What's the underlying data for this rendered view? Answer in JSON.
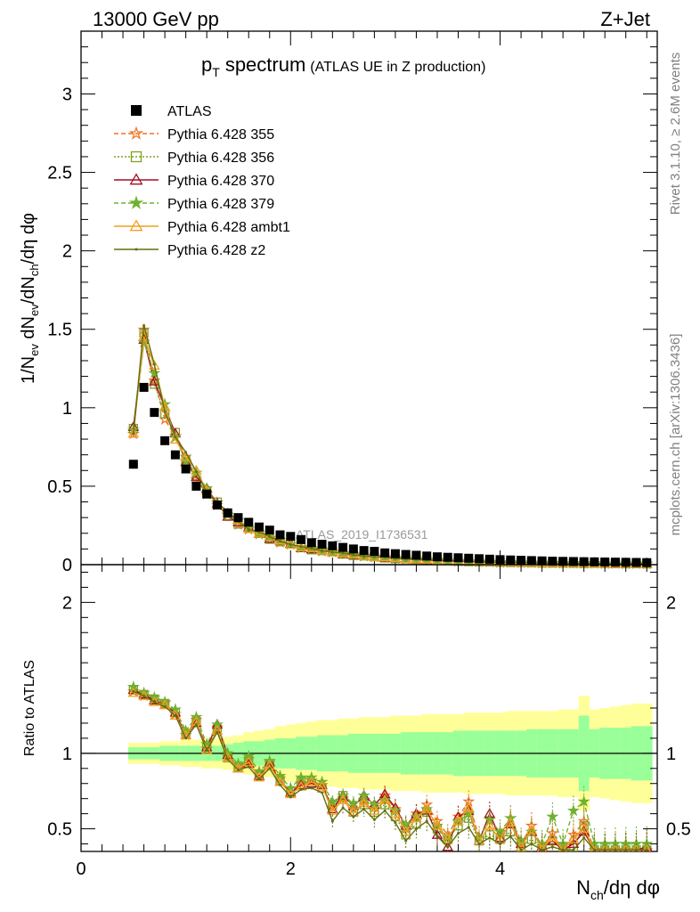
{
  "header": {
    "left": "13000 GeV pp",
    "right": "Z+Jet"
  },
  "side_labels": {
    "rivet": "Rivet 3.1.10, ≥ 2.6M events",
    "mcplots": "mcplots.cern.ch [arXiv:1306.3436]"
  },
  "chart_data": [
    {
      "type": "scatter",
      "title_main": "p",
      "title_sub": "T",
      "title_rest": "spectrum",
      "title_paren": "(ATLAS UE in Z production)",
      "watermark": "ATLAS_2019_I1736531",
      "ylabel": {
        "a": "1/N",
        "a_sub": "ev",
        "b": " dN",
        "b_sub": "ev",
        "c": "/dN",
        "c_sub": "ch",
        "d": "/dη dφ"
      },
      "xlim": [
        0,
        5.5
      ],
      "ylim": [
        0,
        3.4
      ],
      "yticks": [
        0,
        0.5,
        1,
        1.5,
        2,
        2.5,
        3
      ],
      "ytick_labels": [
        "0",
        "0.5",
        "1",
        "1.5",
        "2",
        "2.5",
        "3"
      ],
      "legend": [
        {
          "label": "ATLAS",
          "color": "#000000",
          "marker": "square-filled",
          "line": "none"
        },
        {
          "label": "Pythia 6.428 355",
          "color": "#f07020",
          "marker": "star-open",
          "line": "dashed"
        },
        {
          "label": "Pythia 6.428 356",
          "color": "#80a020",
          "marker": "square-open",
          "line": "dotted"
        },
        {
          "label": "Pythia 6.428 370",
          "color": "#a01020",
          "marker": "triangle-open",
          "line": "solid"
        },
        {
          "label": "Pythia 6.428 379",
          "color": "#70b030",
          "marker": "star-filled",
          "line": "dashed"
        },
        {
          "label": "Pythia 6.428 ambt1",
          "color": "#f0a020",
          "marker": "triangle-open",
          "line": "solid"
        },
        {
          "label": "Pythia 6.428 z2",
          "color": "#607010",
          "marker": "dot",
          "line": "solid"
        }
      ],
      "data_x": [
        0.5,
        0.6,
        0.7,
        0.8,
        0.9,
        1.0,
        1.1,
        1.2,
        1.3,
        1.4,
        1.5,
        1.6,
        1.7,
        1.8,
        1.9,
        2.0,
        2.1,
        2.2,
        2.3,
        2.4,
        2.5,
        2.6,
        2.7,
        2.8,
        2.9,
        3.0,
        3.1,
        3.2,
        3.3,
        3.4,
        3.5,
        3.6,
        3.7,
        3.8,
        3.9,
        4.0,
        4.1,
        4.2,
        4.3,
        4.4,
        4.5,
        4.6,
        4.7,
        4.8,
        4.9,
        5.0,
        5.1,
        5.2,
        5.3,
        5.4
      ],
      "atlas_values": [
        0.64,
        1.13,
        0.97,
        0.79,
        0.7,
        0.61,
        0.5,
        0.45,
        0.38,
        0.33,
        0.3,
        0.27,
        0.24,
        0.22,
        0.19,
        0.18,
        0.16,
        0.14,
        0.13,
        0.12,
        0.11,
        0.1,
        0.09,
        0.085,
        0.075,
        0.07,
        0.065,
        0.06,
        0.055,
        0.05,
        0.047,
        0.044,
        0.041,
        0.038,
        0.035,
        0.032,
        0.03,
        0.028,
        0.026,
        0.024,
        0.022,
        0.021,
        0.02,
        0.019,
        0.018,
        0.017,
        0.016,
        0.015,
        0.014,
        0.013
      ],
      "mc_values": [
        0.85,
        1.47,
        1.21,
        0.98,
        0.82,
        0.68,
        0.57,
        0.47,
        0.39,
        0.32,
        0.27,
        0.23,
        0.2,
        0.17,
        0.15,
        0.13,
        0.11,
        0.1,
        0.09,
        0.08,
        0.07,
        0.062,
        0.055,
        0.05,
        0.045,
        0.04,
        0.036,
        0.033,
        0.03,
        0.027,
        0.024,
        0.022,
        0.02,
        0.018,
        0.017,
        0.015,
        0.014,
        0.013,
        0.012,
        0.011,
        0.01,
        0.009,
        0.009,
        0.008,
        0.008,
        0.007,
        0.007,
        0.006,
        0.006,
        0.005
      ]
    },
    {
      "type": "line",
      "ylabel": "Ratio to ATLAS",
      "xlabel": {
        "a": "N",
        "a_sub": "ch",
        "b": "/dη dφ"
      },
      "xlim": [
        0,
        5.5
      ],
      "ylim": [
        0.35,
        2.25
      ],
      "xticks": [
        0,
        2,
        4
      ],
      "xtick_labels": [
        "0",
        "2",
        "4"
      ],
      "yticks": [
        0.5,
        1,
        2
      ],
      "ytick_labels": [
        "0.5",
        "1",
        "2"
      ],
      "band_inner": [
        0.04,
        0.04,
        0.04,
        0.05,
        0.05,
        0.05,
        0.05,
        0.05,
        0.05,
        0.06,
        0.07,
        0.08,
        0.08,
        0.09,
        0.1,
        0.1,
        0.11,
        0.11,
        0.12,
        0.12,
        0.12,
        0.13,
        0.13,
        0.13,
        0.13,
        0.13,
        0.14,
        0.14,
        0.14,
        0.14,
        0.14,
        0.15,
        0.15,
        0.15,
        0.15,
        0.15,
        0.15,
        0.15,
        0.16,
        0.16,
        0.16,
        0.16,
        0.16,
        0.25,
        0.16,
        0.17,
        0.17,
        0.17,
        0.18,
        0.18
      ],
      "band_outer": [
        0.07,
        0.07,
        0.07,
        0.08,
        0.08,
        0.09,
        0.09,
        0.1,
        0.1,
        0.11,
        0.12,
        0.14,
        0.15,
        0.16,
        0.18,
        0.19,
        0.2,
        0.21,
        0.22,
        0.22,
        0.23,
        0.23,
        0.24,
        0.24,
        0.24,
        0.25,
        0.25,
        0.25,
        0.26,
        0.26,
        0.26,
        0.26,
        0.27,
        0.27,
        0.27,
        0.27,
        0.28,
        0.28,
        0.28,
        0.28,
        0.28,
        0.29,
        0.29,
        0.38,
        0.29,
        0.3,
        0.31,
        0.32,
        0.33,
        0.33
      ],
      "series": [
        {
          "name": "Pythia 6.428 355",
          "values": [
            1.41,
            1.38,
            1.35,
            1.33,
            1.26,
            1.12,
            1.22,
            1.03,
            1.17,
            0.98,
            0.92,
            0.96,
            0.86,
            0.94,
            0.83,
            0.74,
            0.8,
            0.82,
            0.79,
            0.64,
            0.7,
            0.63,
            0.69,
            0.64,
            0.72,
            0.63,
            0.5,
            0.6,
            0.66,
            0.55,
            0.46,
            0.58,
            0.68,
            0.44,
            0.56,
            0.46,
            0.57,
            0.4,
            0.52,
            0.38,
            0.47,
            0.36,
            0.46,
            0.55,
            0.36,
            0.36,
            0.36,
            0.36,
            0.36,
            0.36
          ]
        },
        {
          "name": "Pythia 6.428 356",
          "values": [
            1.42,
            1.39,
            1.36,
            1.33,
            1.27,
            1.13,
            1.21,
            1.04,
            1.16,
            0.97,
            0.91,
            0.95,
            0.85,
            0.92,
            0.82,
            0.75,
            0.81,
            0.8,
            0.77,
            0.66,
            0.72,
            0.61,
            0.66,
            0.61,
            0.66,
            0.58,
            0.46,
            0.53,
            0.61,
            0.5,
            0.43,
            0.52,
            0.57,
            0.42,
            0.46,
            0.43,
            0.48,
            0.38,
            0.43,
            0.37,
            0.42,
            0.36,
            0.38,
            0.52,
            0.36,
            0.36,
            0.36,
            0.36,
            0.36,
            0.36
          ]
        },
        {
          "name": "Pythia 6.428 370",
          "values": [
            1.42,
            1.39,
            1.35,
            1.32,
            1.27,
            1.12,
            1.2,
            1.04,
            1.19,
            0.99,
            0.9,
            0.93,
            0.85,
            0.94,
            0.81,
            0.74,
            0.79,
            0.8,
            0.79,
            0.63,
            0.72,
            0.65,
            0.72,
            0.66,
            0.73,
            0.64,
            0.52,
            0.6,
            0.62,
            0.46,
            0.38,
            0.58,
            0.62,
            0.42,
            0.6,
            0.44,
            0.53,
            0.4,
            0.48,
            0.38,
            0.42,
            0.36,
            0.4,
            0.48,
            0.36,
            0.36,
            0.36,
            0.36,
            0.36,
            0.38
          ]
        },
        {
          "name": "Pythia 6.428 379",
          "values": [
            1.44,
            1.4,
            1.37,
            1.34,
            1.29,
            1.15,
            1.24,
            1.06,
            1.19,
            1.0,
            0.93,
            0.98,
            0.88,
            0.95,
            0.85,
            0.77,
            0.84,
            0.84,
            0.81,
            0.68,
            0.72,
            0.67,
            0.72,
            0.66,
            0.69,
            0.62,
            0.53,
            0.58,
            0.63,
            0.52,
            0.44,
            0.55,
            0.6,
            0.44,
            0.56,
            0.48,
            0.57,
            0.42,
            0.48,
            0.4,
            0.58,
            0.4,
            0.62,
            0.68,
            0.4,
            0.4,
            0.4,
            0.4,
            0.4,
            0.4
          ]
        },
        {
          "name": "Pythia 6.428 ambt1",
          "values": [
            1.4,
            1.38,
            1.34,
            1.32,
            1.25,
            1.12,
            1.21,
            1.02,
            1.15,
            0.97,
            0.9,
            0.94,
            0.84,
            0.92,
            0.81,
            0.73,
            0.78,
            0.81,
            0.78,
            0.62,
            0.69,
            0.61,
            0.67,
            0.62,
            0.69,
            0.6,
            0.48,
            0.57,
            0.63,
            0.52,
            0.43,
            0.55,
            0.64,
            0.42,
            0.52,
            0.43,
            0.54,
            0.38,
            0.49,
            0.37,
            0.44,
            0.36,
            0.43,
            0.5,
            0.36,
            0.36,
            0.36,
            0.36,
            0.36,
            0.36
          ]
        },
        {
          "name": "Pythia 6.428 z2",
          "values": [
            1.41,
            1.38,
            1.34,
            1.31,
            1.25,
            1.1,
            1.19,
            1.02,
            1.14,
            0.96,
            0.89,
            0.91,
            0.83,
            0.9,
            0.79,
            0.71,
            0.76,
            0.77,
            0.74,
            0.55,
            0.64,
            0.58,
            0.63,
            0.56,
            0.62,
            0.54,
            0.42,
            0.5,
            0.55,
            0.45,
            0.38,
            0.47,
            0.51,
            0.4,
            0.44,
            0.4,
            0.45,
            0.36,
            0.4,
            0.36,
            0.38,
            0.36,
            0.36,
            0.44,
            0.36,
            0.36,
            0.36,
            0.36,
            0.36,
            0.36
          ]
        }
      ]
    }
  ]
}
